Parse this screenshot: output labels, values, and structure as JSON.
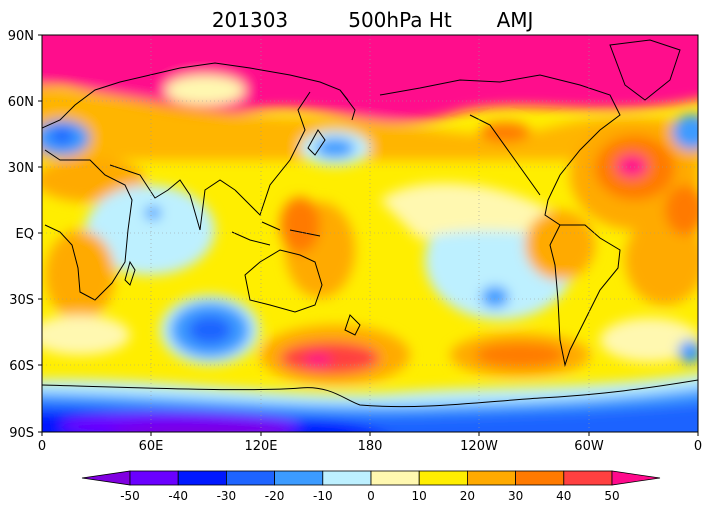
{
  "title": {
    "date": "201303",
    "field": "500hPa Ht",
    "mode": "AMJ"
  },
  "map": {
    "lat_labels": [
      "90N",
      "60N",
      "30N",
      "EQ",
      "30S",
      "60S",
      "90S"
    ],
    "lon_labels": [
      "0",
      "60E",
      "120E",
      "180",
      "120W",
      "60W",
      "0"
    ]
  },
  "colorbar": {
    "ticks": [
      "-50",
      "-40",
      "-30",
      "-20",
      "-10",
      "0",
      "10",
      "20",
      "30",
      "40",
      "50"
    ],
    "colors": [
      "#8000e0",
      "#6a00ff",
      "#0018ff",
      "#1e64ff",
      "#3c9bff",
      "#bdf0ff",
      "#fff8b0",
      "#ffee00",
      "#ffaa00",
      "#ff7a00",
      "#ff4040",
      "#ff0a8c"
    ]
  }
}
